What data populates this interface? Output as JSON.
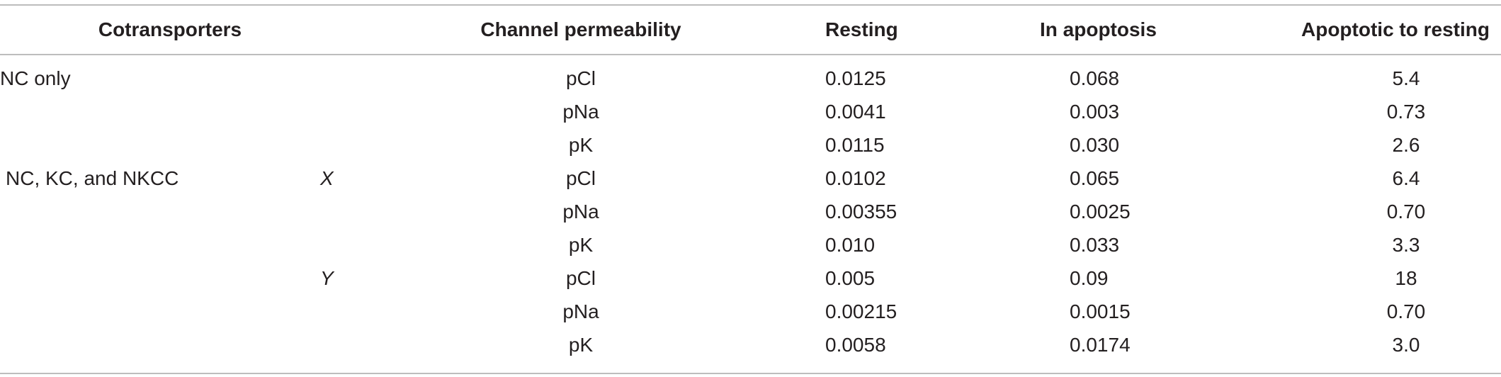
{
  "table": {
    "headers": {
      "cotransporters": "Cotransporters",
      "channel_permeability": "Channel permeability",
      "resting": "Resting",
      "in_apoptosis": "In apoptosis",
      "ratio": "Apoptotic to resting"
    },
    "rows": [
      {
        "cotransporters": "NC only",
        "group": "",
        "permeability": "pCl",
        "resting": "0.0125",
        "apoptosis": "0.068",
        "ratio": "5.4"
      },
      {
        "cotransporters": "",
        "group": "",
        "permeability": "pNa",
        "resting": "0.0041",
        "apoptosis": "0.003",
        "ratio": "0.73"
      },
      {
        "cotransporters": "",
        "group": "",
        "permeability": "pK",
        "resting": "0.0115",
        "apoptosis": "0.030",
        "ratio": "2.6"
      },
      {
        "cotransporters": "NC, KC, and NKCC",
        "group": "X",
        "permeability": "pCl",
        "resting": "0.0102",
        "apoptosis": "0.065",
        "ratio": "6.4"
      },
      {
        "cotransporters": "",
        "group": "",
        "permeability": "pNa",
        "resting": "0.00355",
        "apoptosis": "0.0025",
        "ratio": "0.70"
      },
      {
        "cotransporters": "",
        "group": "",
        "permeability": "pK",
        "resting": "0.010",
        "apoptosis": "0.033",
        "ratio": "3.3"
      },
      {
        "cotransporters": "",
        "group": "Y",
        "permeability": "pCl",
        "resting": "0.005",
        "apoptosis": "0.09",
        "ratio": "18"
      },
      {
        "cotransporters": "",
        "group": "",
        "permeability": "pNa",
        "resting": "0.00215",
        "apoptosis": "0.0015",
        "ratio": "0.70"
      },
      {
        "cotransporters": "",
        "group": "",
        "permeability": "pK",
        "resting": "0.0058",
        "apoptosis": "0.0174",
        "ratio": "3.0"
      }
    ]
  }
}
